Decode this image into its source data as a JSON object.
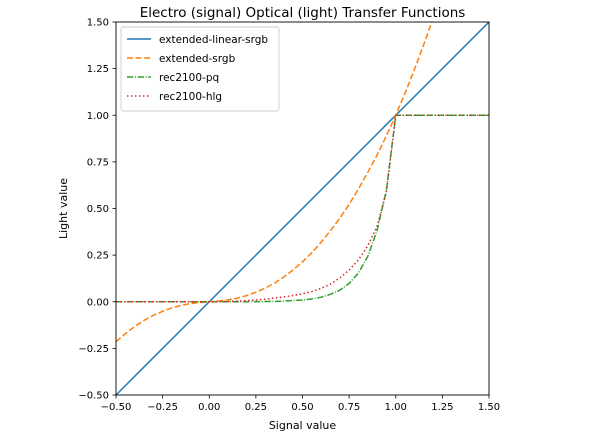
{
  "chart_data": {
    "type": "line",
    "title": "Electro (signal) Optical (light) Transfer Functions",
    "xlabel": "Signal value",
    "ylabel": "Light value",
    "xlim": [
      -0.5,
      1.5
    ],
    "ylim": [
      -0.5,
      1.5
    ],
    "xticks": [
      "−0.50",
      "−0.25",
      "0.00",
      "0.25",
      "0.50",
      "0.75",
      "1.00",
      "1.25",
      "1.50"
    ],
    "yticks": [
      "−0.50",
      "−0.25",
      "0.00",
      "0.25",
      "0.50",
      "0.75",
      "1.00",
      "1.25",
      "1.50"
    ],
    "grid": false,
    "legend_position": "top-left",
    "series": [
      {
        "name": "extended-linear-srgb",
        "color": "#1f77b4",
        "dash": "solid",
        "x": [
          -0.5,
          0.0,
          0.5,
          1.0,
          1.5
        ],
        "y": [
          -0.5,
          0.0,
          0.5,
          1.0,
          1.5
        ]
      },
      {
        "name": "extended-srgb",
        "color": "#ff7f0e",
        "dash": "dashed",
        "x": [
          -0.5,
          -0.45,
          -0.4,
          -0.35,
          -0.3,
          -0.25,
          -0.2,
          -0.15,
          -0.1,
          -0.05,
          -0.03,
          0.0,
          0.03,
          0.05,
          0.1,
          0.15,
          0.2,
          0.25,
          0.3,
          0.35,
          0.4,
          0.45,
          0.5,
          0.55,
          0.6,
          0.65,
          0.7,
          0.75,
          0.8,
          0.85,
          0.9,
          0.95,
          1.0,
          1.05,
          1.1,
          1.15,
          1.2,
          1.22
        ],
        "y": [
          -0.214,
          -0.171,
          -0.133,
          -0.1,
          -0.073,
          -0.051,
          -0.033,
          -0.019,
          -0.01,
          -0.004,
          -0.002,
          0.0,
          0.002,
          0.004,
          0.01,
          0.019,
          0.033,
          0.051,
          0.073,
          0.1,
          0.133,
          0.171,
          0.214,
          0.263,
          0.319,
          0.381,
          0.448,
          0.522,
          0.604,
          0.694,
          0.787,
          0.89,
          1.0,
          1.118,
          1.245,
          1.378,
          1.52,
          1.58
        ]
      },
      {
        "name": "rec2100-pq",
        "color": "#2ca02c",
        "dash": "dashdot",
        "x": [
          -0.5,
          0.0,
          0.1,
          0.2,
          0.3,
          0.4,
          0.5,
          0.55,
          0.6,
          0.65,
          0.7,
          0.75,
          0.8,
          0.85,
          0.9,
          0.95,
          1.0,
          1.5
        ],
        "y": [
          0.0,
          0.0,
          3e-05,
          0.0003,
          0.0011,
          0.0032,
          0.0092,
          0.015,
          0.0245,
          0.04,
          0.0622,
          0.0983,
          0.154,
          0.243,
          0.383,
          0.6,
          1.0,
          1.0
        ]
      },
      {
        "name": "rec2100-hlg",
        "color": "#d62728",
        "dash": "dotted",
        "x": [
          -0.5,
          0.0,
          0.1,
          0.2,
          0.3,
          0.4,
          0.5,
          0.55,
          0.6,
          0.65,
          0.7,
          0.75,
          0.8,
          0.85,
          0.9,
          0.95,
          1.0,
          1.5
        ],
        "y": [
          0.0,
          0.0,
          0.0014,
          0.0059,
          0.0136,
          0.0257,
          0.0421,
          0.055,
          0.0718,
          0.095,
          0.1275,
          0.1695,
          0.225,
          0.3,
          0.404,
          0.59,
          1.0,
          1.0
        ]
      }
    ]
  }
}
